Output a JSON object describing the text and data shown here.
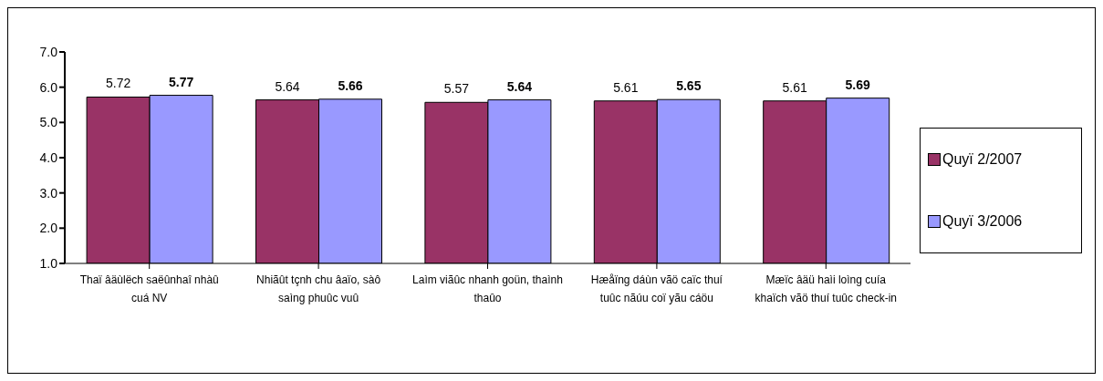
{
  "chart_data": {
    "type": "bar",
    "categories": [
      "Thaï âäùlëch saëûnhaî nhàû cuá NV",
      "Nhiãût tçnh chu âaïo, sàô saìng phuûc vuû",
      "Laìm viãûc nhanh goün, thaình thaûo",
      "Hæåïng dáùn vãö caïc thuí tuûc nãúu coï yãu cáöu",
      "Mæïc âäü haìi loìng cuía khaïch vãö thuí tuûc check-in"
    ],
    "series": [
      {
        "name": "Quyï 2/2007",
        "color": "#993366",
        "values": [
          5.72,
          5.64,
          5.57,
          5.61,
          5.61
        ]
      },
      {
        "name": "Quyï 3/2006",
        "color": "#9999ff",
        "values": [
          5.77,
          5.66,
          5.64,
          5.65,
          5.69
        ]
      }
    ],
    "ylim": [
      1,
      7
    ],
    "yticks": [
      {
        "value": 1,
        "label": "1.0"
      },
      {
        "value": 2,
        "label": "2.0"
      },
      {
        "value": 3,
        "label": "3.0"
      },
      {
        "value": 4,
        "label": "4.0"
      },
      {
        "value": 5,
        "label": "5.0"
      },
      {
        "value": 6,
        "label": "6.0"
      },
      {
        "value": 7,
        "label": "7.0"
      }
    ],
    "data_labels": true,
    "legend": "right",
    "grid": false
  }
}
